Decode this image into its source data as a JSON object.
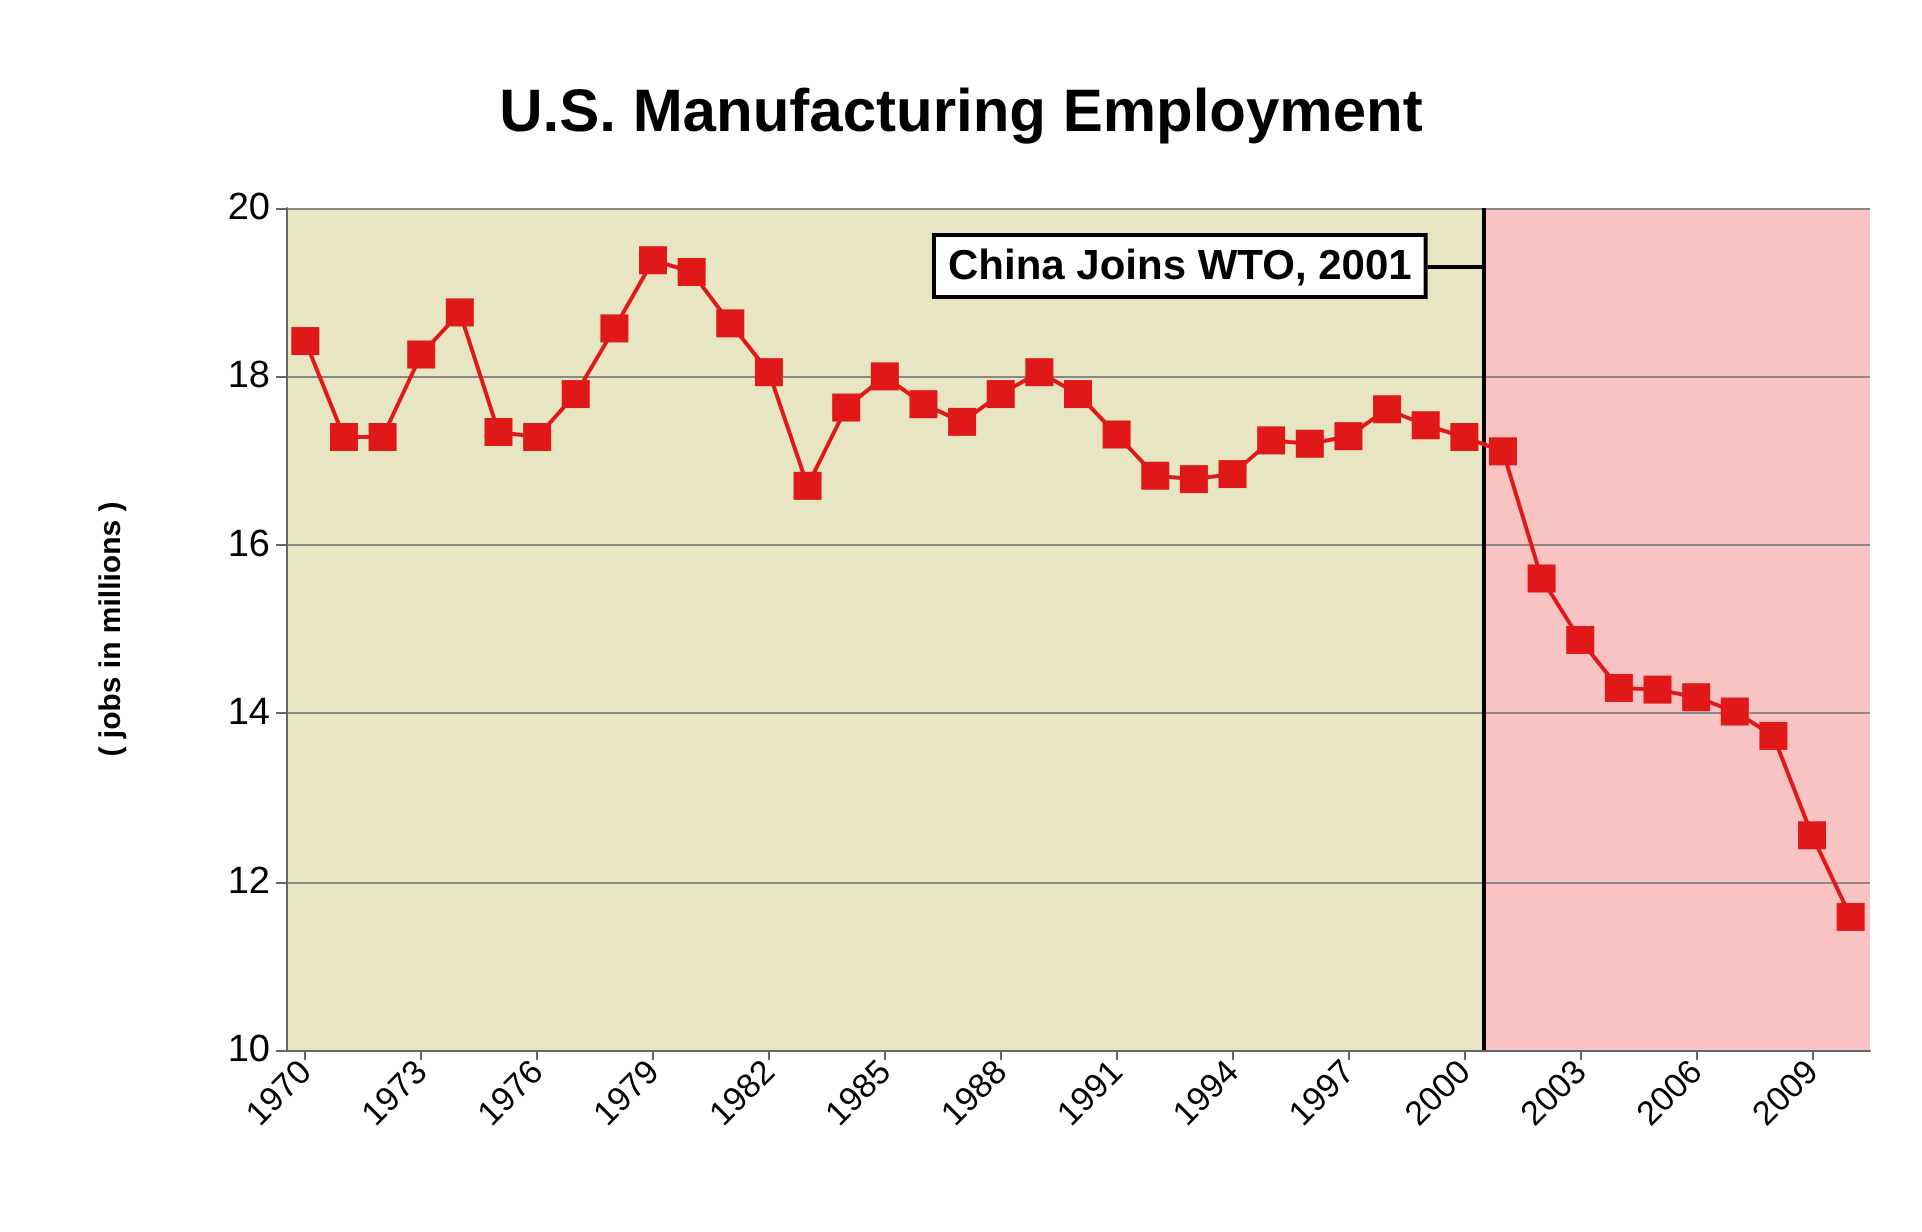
{
  "chart_data": {
    "type": "line",
    "title": "U.S. Manufacturing Employment",
    "ylabel": "( jobs in millions )",
    "x": [
      1970,
      1971,
      1972,
      1973,
      1974,
      1975,
      1976,
      1977,
      1978,
      1979,
      1980,
      1981,
      1982,
      1983,
      1984,
      1985,
      1986,
      1987,
      1988,
      1989,
      1990,
      1991,
      1992,
      1993,
      1994,
      1995,
      1996,
      1997,
      1998,
      1999,
      2000,
      2001,
      2002,
      2003,
      2004,
      2005,
      2006,
      2007,
      2008,
      2009,
      2010
    ],
    "series": [
      {
        "color": "#e01818",
        "values": [
          18.42,
          17.28,
          17.28,
          18.26,
          18.76,
          17.34,
          17.28,
          17.79,
          18.57,
          19.38,
          19.24,
          18.63,
          18.05,
          16.7,
          17.63,
          18.0,
          17.67,
          17.46,
          17.79,
          18.05,
          17.79,
          17.31,
          16.82,
          16.78,
          16.84,
          17.24,
          17.2,
          17.29,
          17.61,
          17.42,
          17.28,
          17.11,
          15.6,
          14.87,
          14.3,
          14.28,
          14.19,
          14.02,
          13.73,
          12.55,
          11.58
        ]
      }
    ],
    "xlim": [
      1969.5,
      2010.5
    ],
    "xticks": [
      1970,
      1973,
      1976,
      1979,
      1982,
      1985,
      1988,
      1991,
      1994,
      1997,
      2000,
      2003,
      2006,
      2009
    ],
    "ylim": [
      10,
      20
    ],
    "yticks": [
      10,
      12,
      14,
      16,
      18,
      20
    ],
    "grid": "y",
    "marker": "square",
    "line_style": "solid",
    "ref_lines": [
      {
        "axis": "x",
        "value": 2000.5,
        "color": "#000000"
      }
    ],
    "bands": [
      {
        "axis": "x",
        "from": 1969.5,
        "to": 2000.5,
        "color": "#e8e6c2"
      },
      {
        "axis": "x",
        "from": 2000.5,
        "to": 2010.5,
        "color": "#f9c3c3"
      }
    ],
    "annotations": [
      {
        "text": "China Joins WTO, 2001",
        "x": 2000.5,
        "y": 19.3
      }
    ]
  }
}
